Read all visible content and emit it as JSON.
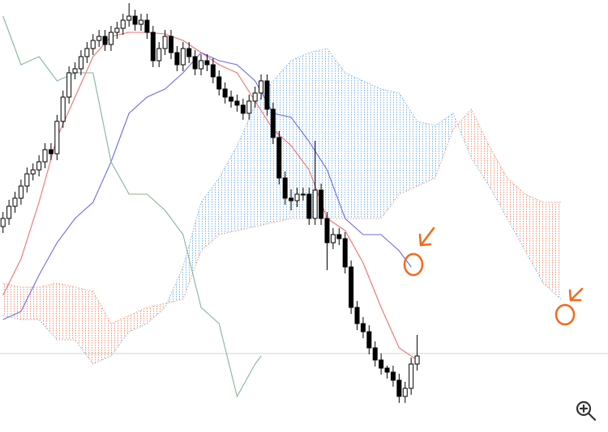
{
  "chart_data": {
    "type": "candlestick",
    "xlim": [
      -0.5,
      100.8
    ],
    "ylim": [
      0,
      534
    ],
    "up_color": "#ffffff",
    "down_color": "#000000",
    "price_line": 97,
    "price_line_color": "#d0d0d0",
    "open": [
      254,
      264,
      279,
      289,
      304,
      319,
      324,
      334,
      349,
      344,
      384,
      414,
      444,
      449,
      464,
      474,
      484,
      489,
      479,
      494,
      499,
      509,
      514,
      504,
      509,
      494,
      459,
      474,
      489,
      469,
      454,
      474,
      464,
      449,
      459,
      454,
      439,
      424,
      414,
      409,
      404,
      394,
      409,
      419,
      434,
      399,
      364,
      314,
      289,
      286,
      294,
      294,
      264,
      299,
      264,
      234,
      244,
      239,
      204,
      154,
      134,
      124,
      104,
      89,
      79,
      74,
      64,
      44,
      54,
      84
    ],
    "high": [
      272,
      287,
      297,
      312,
      327,
      332,
      342,
      357,
      357,
      392,
      422,
      452,
      457,
      472,
      482,
      492,
      497,
      497,
      502,
      507,
      517,
      530,
      522,
      517,
      517,
      502,
      482,
      497,
      497,
      477,
      482,
      482,
      472,
      467,
      467,
      462,
      447,
      432,
      422,
      417,
      412,
      417,
      427,
      442,
      442,
      407,
      372,
      322,
      300,
      302,
      302,
      302,
      360,
      307,
      272,
      252,
      252,
      247,
      212,
      162,
      142,
      132,
      112,
      97,
      82,
      82,
      72,
      62,
      92,
      120
    ],
    "low": [
      246,
      256,
      271,
      281,
      296,
      311,
      316,
      326,
      336,
      336,
      376,
      406,
      436,
      441,
      456,
      466,
      476,
      471,
      471,
      486,
      491,
      501,
      496,
      496,
      486,
      451,
      451,
      466,
      461,
      446,
      446,
      456,
      441,
      441,
      446,
      431,
      416,
      406,
      401,
      396,
      386,
      386,
      401,
      411,
      391,
      356,
      306,
      281,
      274,
      278,
      286,
      256,
      256,
      256,
      200,
      226,
      231,
      196,
      146,
      126,
      116,
      96,
      81,
      71,
      66,
      56,
      36,
      36,
      46,
      76
    ],
    "close": [
      264,
      279,
      289,
      304,
      319,
      324,
      334,
      349,
      344,
      384,
      414,
      444,
      449,
      464,
      474,
      484,
      489,
      479,
      494,
      499,
      509,
      514,
      504,
      509,
      494,
      459,
      474,
      489,
      469,
      454,
      474,
      464,
      449,
      459,
      454,
      439,
      424,
      414,
      409,
      404,
      394,
      409,
      419,
      434,
      399,
      364,
      314,
      289,
      286,
      294,
      294,
      264,
      299,
      264,
      234,
      244,
      239,
      204,
      154,
      134,
      124,
      104,
      89,
      79,
      74,
      64,
      44,
      54,
      84,
      94
    ],
    "lines": [
      {
        "color": "#f07070",
        "x": [
          0,
          3,
          6,
          9,
          12,
          15,
          18,
          21,
          24,
          27,
          30,
          33,
          36,
          39,
          42,
          45,
          48,
          51,
          54,
          57,
          60,
          63,
          66,
          69
        ],
        "values": [
          169,
          214,
          284,
          364,
          414,
          464,
          489,
          494,
          494,
          492,
          484,
          469,
          454,
          444,
          409,
          374,
          354,
          324,
          264,
          249,
          209,
          154,
          104,
          89
        ]
      },
      {
        "color": "#6b6be8",
        "x": [
          0,
          3,
          6,
          9,
          12,
          15,
          18,
          21,
          24,
          27,
          30,
          33,
          36,
          39,
          42,
          45,
          48,
          51,
          54,
          57,
          60,
          63,
          66,
          68
        ],
        "values": [
          139,
          149,
          194,
          234,
          264,
          284,
          334,
          394,
          414,
          424,
          444,
          469,
          459,
          454,
          434,
          394,
          389,
          359,
          324,
          264,
          244,
          244,
          224,
          204
        ]
      },
      {
        "color": "#86b596",
        "x": [
          0,
          3,
          6,
          9,
          12,
          15,
          18,
          21,
          24,
          27,
          30,
          33,
          36,
          39,
          42,
          43
        ],
        "values": [
          514,
          454,
          464,
          434,
          444,
          444,
          334,
          294,
          294,
          274,
          244,
          154,
          134,
          44,
          84,
          94
        ]
      }
    ],
    "cloud": {
      "x": [
        0,
        3,
        6,
        9,
        12,
        15,
        18,
        21,
        24,
        27,
        30,
        33,
        36,
        39,
        42,
        45,
        48,
        51,
        54,
        57,
        60,
        63,
        66,
        69,
        72,
        75,
        78,
        81,
        84,
        87,
        90,
        93
      ],
      "a": [
        144,
        139,
        139,
        114,
        114,
        84,
        94,
        124,
        134,
        154,
        204,
        284,
        314,
        354,
        404,
        434,
        459,
        469,
        474,
        444,
        434,
        424,
        419,
        384,
        379,
        394,
        339,
        304,
        264,
        224,
        184,
        164
      ],
      "b": [
        184,
        179,
        179,
        184,
        179,
        174,
        134,
        144,
        154,
        159,
        164,
        224,
        244,
        249,
        254,
        259,
        264,
        264,
        264,
        264,
        264,
        264,
        294,
        304,
        314,
        374,
        399,
        354,
        314,
        294,
        284,
        284
      ],
      "a_color": "#7fb6e6",
      "b_color": "#f2957a"
    }
  }
}
